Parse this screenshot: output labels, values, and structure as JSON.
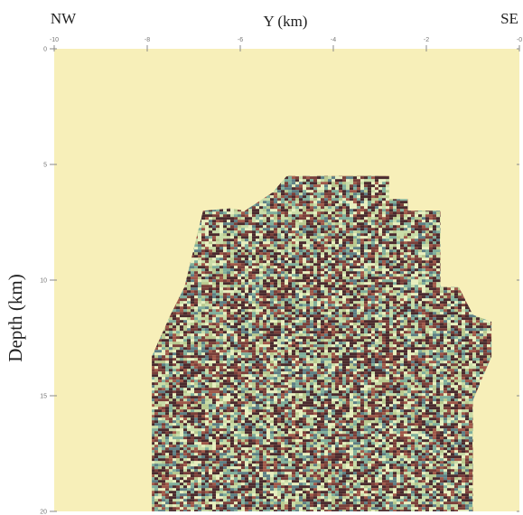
{
  "chart_data": {
    "type": "heatmap",
    "title": "",
    "xlabel": "Y (km)",
    "ylabel": "Depth (km)",
    "corner_left": "NW",
    "corner_right": "SE",
    "xlim": [
      -10,
      0
    ],
    "ylim": [
      0,
      20
    ],
    "x_ticks": [
      -10,
      -8,
      -6,
      -4,
      -2,
      0
    ],
    "x_tick_labels": [
      "-10",
      "-8",
      "-6",
      "-4",
      "-2",
      "-0"
    ],
    "y_ticks": [
      0,
      5,
      10,
      15,
      20
    ],
    "y_tick_labels": [
      "0",
      "5",
      "10",
      "15",
      "20"
    ],
    "background_color": "#f7efb9",
    "palette": [
      "#4a2a2e",
      "#7a3f3a",
      "#a0584a",
      "#5e7f86",
      "#7fae9c",
      "#c9dca8",
      "#e8efc0",
      "#b9c98f"
    ],
    "data_region_outline": [
      [
        -7.9,
        20
      ],
      [
        -7.9,
        13.3
      ],
      [
        -7.5,
        11.5
      ],
      [
        -7.2,
        10.3
      ],
      [
        -6.8,
        7.0
      ],
      [
        -6.2,
        6.9
      ],
      [
        -5.9,
        7.0
      ],
      [
        -5.3,
        6.2
      ],
      [
        -5.0,
        5.5
      ],
      [
        -2.8,
        5.5
      ],
      [
        -2.8,
        6.5
      ],
      [
        -2.4,
        6.5
      ],
      [
        -2.4,
        7.0
      ],
      [
        -1.7,
        7.0
      ],
      [
        -1.7,
        10.3
      ],
      [
        -1.3,
        10.3
      ],
      [
        -1.0,
        11.5
      ],
      [
        -0.6,
        11.8
      ],
      [
        -0.6,
        13.3
      ],
      [
        -1.0,
        15.2
      ],
      [
        -1.0,
        20
      ]
    ]
  }
}
